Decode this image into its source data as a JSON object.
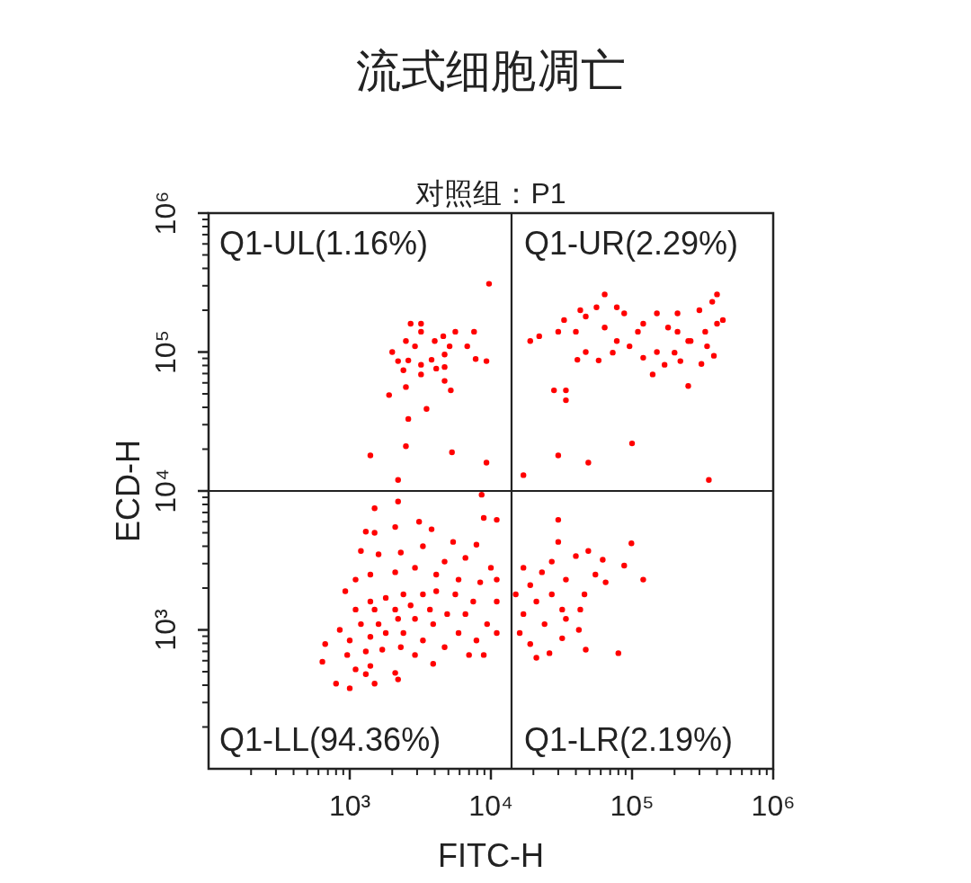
{
  "chart_data": {
    "type": "scatter",
    "title": "流式细胞凋亡",
    "subtitle": "对照组：P1",
    "xlabel": "FITC-H",
    "ylabel": "ECD-H",
    "annotations": [
      "Q1-UL(1.16%)",
      "Q1-UR(2.29%)",
      "Q1-LL(94.36%)",
      "Q1-LR(2.19%)"
    ],
    "log": "xy",
    "xlim": [
      100,
      1000000
    ],
    "ylim": [
      100,
      1000000
    ],
    "xticks": [
      {
        "value": 1000,
        "label": "10³"
      },
      {
        "value": 10000,
        "label": "10⁴"
      },
      {
        "value": 100000,
        "label": "10⁵"
      },
      {
        "value": 1000000,
        "label": "10⁶"
      }
    ],
    "yticks": [
      {
        "value": 1000,
        "label": "10³"
      },
      {
        "value": 10000,
        "label": "10⁴"
      },
      {
        "value": 100000,
        "label": "10⁵"
      },
      {
        "value": 1000000,
        "label": "10⁶"
      }
    ],
    "marker": "circle",
    "ref_lines": [
      {
        "axis": "x",
        "value": 14000,
        "color": "#222222"
      },
      {
        "axis": "y",
        "value": 10000,
        "color": "#222222"
      }
    ],
    "x": [
      9700,
      2700,
      3200,
      3200,
      2500,
      4600,
      5600,
      7600,
      2000,
      2900,
      4000,
      5100,
      6800,
      2200,
      2600,
      3200,
      3800,
      4700,
      7800,
      9300,
      2400,
      3200,
      4100,
      4700,
      2500,
      4700,
      5200,
      1900,
      3500,
      2600,
      2500,
      1400,
      5300,
      9300,
      2200,
      64000,
      400000,
      43000,
      56000,
      78000,
      33000,
      47000,
      88000,
      120000,
      150000,
      210000,
      300000,
      370000,
      400000,
      440000,
      19000,
      22000,
      30000,
      40000,
      64000,
      78000,
      110000,
      180000,
      210000,
      260000,
      330000,
      96000,
      150000,
      200000,
      250000,
      340000,
      380000,
      47000,
      73000,
      58000,
      120000,
      170000,
      220000,
      310000,
      140000,
      41000,
      250000,
      28000,
      34000,
      34000,
      100000,
      30000,
      49000,
      17000,
      350000,
      30000,
      30000,
      99000,
      49000,
      62000,
      88000,
      120000,
      40000,
      27000,
      23000,
      17000,
      34000,
      55000,
      65000,
      46000,
      43000,
      27000,
      19000,
      15000,
      21000,
      32000,
      17000,
      24000,
      34000,
      42000,
      16000,
      19000,
      32000,
      26000,
      21000,
      47000,
      80000,
      2200,
      8600,
      1500,
      1300,
      1500,
      2100,
      3100,
      3800,
      5400,
      8900,
      11000,
      7900,
      1200,
      1600,
      2300,
      3300,
      4700,
      6600,
      10000,
      930,
      1100,
      1400,
      2100,
      2900,
      4100,
      5900,
      8400,
      11000,
      11000,
      7500,
      5600,
      4100,
      3300,
      2400,
      1800,
      1400,
      1100,
      1500,
      2100,
      2700,
      3700,
      4900,
      6600,
      9400,
      11000,
      850,
      1200,
      1600,
      2200,
      2900,
      3900,
      5900,
      7900,
      670,
      1000,
      1400,
      1800,
      2400,
      3300,
      4700,
      7000,
      8900,
      640,
      960,
      1300,
      1700,
      2300,
      2900,
      3900,
      800,
      1100,
      1400,
      2100,
      1000,
      1500,
      2200,
      1300
    ],
    "series": [
      {
        "color": "#ff0000",
        "values": [
          310000,
          160000,
          160000,
          140000,
          120000,
          130000,
          140000,
          140000,
          100000,
          110000,
          120000,
          110000,
          110000,
          86000,
          87000,
          81000,
          88000,
          96000,
          89000,
          86000,
          74000,
          69000,
          76000,
          78000,
          56000,
          62000,
          53000,
          49000,
          39000,
          33000,
          21000,
          18000,
          19000,
          16000,
          12000,
          260000,
          260000,
          200000,
          210000,
          210000,
          170000,
          180000,
          190000,
          160000,
          190000,
          190000,
          200000,
          230000,
          160000,
          170000,
          120000,
          130000,
          140000,
          140000,
          150000,
          120000,
          140000,
          150000,
          140000,
          120000,
          140000,
          110000,
          100000,
          99000,
          120000,
          110000,
          94000,
          100000,
          99000,
          87000,
          91000,
          81000,
          86000,
          82000,
          69000,
          88000,
          57000,
          53000,
          53000,
          45000,
          22000,
          18000,
          16000,
          13000,
          12000,
          6200,
          4300,
          4200,
          3700,
          3200,
          2900,
          2300,
          3400,
          3100,
          2600,
          2800,
          2300,
          2500,
          2200,
          1800,
          1400,
          1800,
          2100,
          1800,
          1600,
          1400,
          1300,
          1100,
          1200,
          1000,
          950,
          790,
          870,
          680,
          630,
          720,
          680,
          8400,
          9400,
          7500,
          5100,
          5000,
          5500,
          6000,
          5300,
          4300,
          6400,
          6200,
          4100,
          3700,
          3500,
          3600,
          4000,
          3100,
          3300,
          2800,
          1900,
          2300,
          2500,
          2600,
          2800,
          2500,
          2300,
          2200,
          2300,
          1600,
          1600,
          1800,
          1900,
          1800,
          1800,
          1700,
          1600,
          1400,
          1400,
          1400,
          1500,
          1400,
          1300,
          1300,
          1100,
          950,
          1000,
          1100,
          1100,
          1200,
          1200,
          1100,
          950,
          840,
          790,
          840,
          890,
          950,
          950,
          840,
          750,
          660,
          660,
          590,
          660,
          700,
          720,
          750,
          660,
          570,
          410,
          520,
          550,
          490,
          380,
          410,
          440,
          480
        ]
      }
    ]
  }
}
